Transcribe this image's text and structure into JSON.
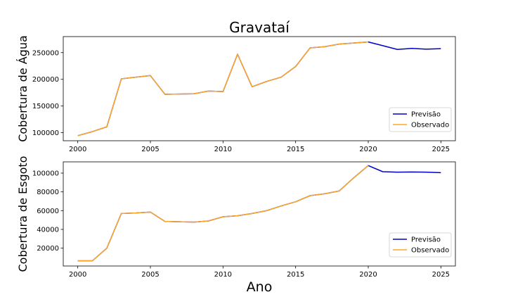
{
  "chart_data": [
    {
      "type": "line",
      "title": "Gravataí",
      "xlabel": "",
      "ylabel": "Cobertura de Água",
      "xlim": [
        1999,
        2026
      ],
      "ylim": [
        85000,
        280000
      ],
      "xticks": [
        2000,
        2005,
        2010,
        2015,
        2020,
        2025
      ],
      "yticks": [
        100000,
        150000,
        200000,
        250000
      ],
      "legend": "bottom-right",
      "grid": false,
      "series": [
        {
          "name": "Previsão",
          "color": "#0000cc",
          "x": [
            2000,
            2001,
            2002,
            2003,
            2004,
            2005,
            2006,
            2007,
            2008,
            2009,
            2010,
            2011,
            2012,
            2013,
            2014,
            2015,
            2016,
            2017,
            2018,
            2019,
            2020,
            2021,
            2022,
            2023,
            2024,
            2025
          ],
          "values": [
            94500,
            102000,
            111000,
            201000,
            204000,
            207000,
            172000,
            172500,
            173000,
            178000,
            177000,
            247000,
            186000,
            196000,
            204000,
            224000,
            259000,
            261000,
            266000,
            268000,
            270000,
            263000,
            256000,
            258000,
            256500,
            257500
          ]
        },
        {
          "name": "Observado",
          "color": "#ffa726",
          "x": [
            2000,
            2001,
            2002,
            2003,
            2004,
            2005,
            2006,
            2007,
            2008,
            2009,
            2010,
            2011,
            2012,
            2013,
            2014,
            2015,
            2016,
            2017,
            2018,
            2019,
            2020
          ],
          "values": [
            94500,
            102000,
            111000,
            201000,
            204000,
            207000,
            172000,
            172500,
            173000,
            178000,
            177000,
            247000,
            186000,
            196000,
            204000,
            224000,
            259000,
            261000,
            266000,
            268000,
            270000
          ]
        }
      ]
    },
    {
      "type": "line",
      "title": "",
      "xlabel": "Ano",
      "ylabel": "Cobertura de Esgoto",
      "xlim": [
        1999,
        2026
      ],
      "ylim": [
        1000,
        112000
      ],
      "xticks": [
        2000,
        2005,
        2010,
        2015,
        2020,
        2025
      ],
      "yticks": [
        20000,
        40000,
        60000,
        80000,
        100000
      ],
      "legend": "bottom-right",
      "grid": false,
      "series": [
        {
          "name": "Previsão",
          "color": "#0000cc",
          "x": [
            2000,
            2001,
            2002,
            2003,
            2004,
            2005,
            2006,
            2007,
            2008,
            2009,
            2010,
            2011,
            2012,
            2013,
            2014,
            2015,
            2016,
            2017,
            2018,
            2019,
            2020,
            2021,
            2022,
            2023,
            2024,
            2025
          ],
          "values": [
            6500,
            6500,
            20000,
            57000,
            57500,
            58500,
            48500,
            48200,
            47800,
            49000,
            53500,
            54500,
            57000,
            60000,
            65000,
            69500,
            76000,
            78000,
            81000,
            95000,
            108000,
            101500,
            101000,
            101200,
            101000,
            100500
          ]
        },
        {
          "name": "Observado",
          "color": "#ffa726",
          "x": [
            2000,
            2001,
            2002,
            2003,
            2004,
            2005,
            2006,
            2007,
            2008,
            2009,
            2010,
            2011,
            2012,
            2013,
            2014,
            2015,
            2016,
            2017,
            2018,
            2019,
            2020
          ],
          "values": [
            6500,
            6500,
            20000,
            57000,
            57500,
            58500,
            48500,
            48200,
            47800,
            49000,
            53500,
            54500,
            57000,
            60000,
            65000,
            69500,
            76000,
            78000,
            81000,
            95000,
            108000
          ]
        }
      ]
    }
  ]
}
